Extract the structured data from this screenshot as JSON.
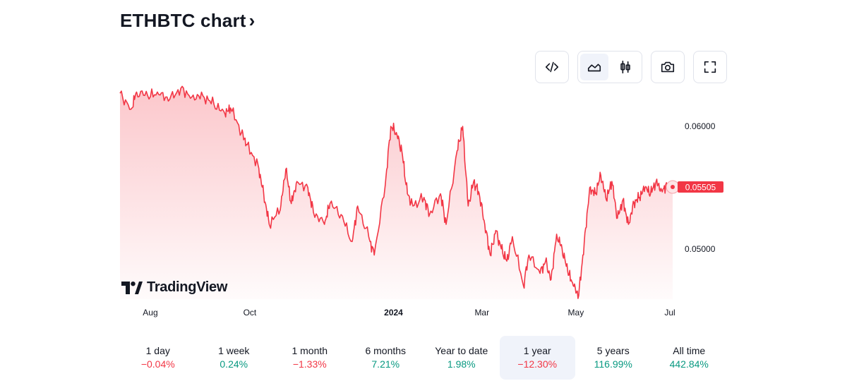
{
  "header": {
    "title": "ETHBTC chart",
    "chevron": "›"
  },
  "toolbar": {
    "embed_icon": "code-icon",
    "area_icon": "area-chart-icon",
    "candles_icon": "candlestick-icon",
    "snapshot_icon": "camera-icon",
    "fullscreen_icon": "fullscreen-icon"
  },
  "branding": {
    "logo_text": "TradingView"
  },
  "colors": {
    "line": "#f23645",
    "positive": "#089981",
    "negative": "#f23645",
    "active_bg": "#f0f3fa"
  },
  "chart_data": {
    "type": "area",
    "title": "ETHBTC",
    "x_ticks": [
      {
        "label": "Aug",
        "t": 0.06
      },
      {
        "label": "Oct",
        "t": 0.24
      },
      {
        "label": "2024",
        "t": 0.5,
        "bold": true
      },
      {
        "label": "Mar",
        "t": 0.66
      },
      {
        "label": "May",
        "t": 0.83
      },
      {
        "label": "Jul",
        "t": 1.0
      }
    ],
    "y_ticks": [
      {
        "label": "0.06000",
        "value": 0.06
      },
      {
        "label": "0.05000",
        "value": 0.05
      }
    ],
    "ylim": [
      0.0459,
      0.0634
    ],
    "last_price": {
      "label": "0.05505",
      "value": 0.05505
    },
    "x": [
      0,
      0.02,
      0.03,
      0.05,
      0.07,
      0.09,
      0.11,
      0.13,
      0.15,
      0.17,
      0.19,
      0.2,
      0.22,
      0.23,
      0.25,
      0.26,
      0.27,
      0.29,
      0.3,
      0.31,
      0.32,
      0.34,
      0.35,
      0.37,
      0.38,
      0.4,
      0.42,
      0.43,
      0.45,
      0.46,
      0.48,
      0.49,
      0.5,
      0.51,
      0.52,
      0.53,
      0.55,
      0.56,
      0.58,
      0.59,
      0.61,
      0.62,
      0.63,
      0.64,
      0.65,
      0.66,
      0.67,
      0.68,
      0.69,
      0.7,
      0.71,
      0.73,
      0.74,
      0.76,
      0.77,
      0.78,
      0.79,
      0.8,
      0.81,
      0.82,
      0.83,
      0.84,
      0.85,
      0.86,
      0.87,
      0.88,
      0.89,
      0.9,
      0.91,
      0.92,
      0.93,
      0.94,
      0.95,
      0.96,
      0.97,
      0.98,
      0.99,
      1.0
    ],
    "values": [
      0.0627,
      0.0614,
      0.0628,
      0.0625,
      0.0626,
      0.0622,
      0.0631,
      0.0624,
      0.0625,
      0.0618,
      0.061,
      0.0615,
      0.0595,
      0.0585,
      0.0568,
      0.0545,
      0.052,
      0.0532,
      0.0565,
      0.0537,
      0.0555,
      0.055,
      0.053,
      0.052,
      0.0537,
      0.0528,
      0.0506,
      0.0535,
      0.051,
      0.0495,
      0.0552,
      0.06,
      0.0595,
      0.058,
      0.0545,
      0.0535,
      0.0542,
      0.0528,
      0.0545,
      0.052,
      0.058,
      0.06,
      0.0535,
      0.0555,
      0.0545,
      0.052,
      0.0495,
      0.0515,
      0.05,
      0.049,
      0.051,
      0.047,
      0.0495,
      0.048,
      0.049,
      0.0475,
      0.0512,
      0.05,
      0.0482,
      0.047,
      0.0462,
      0.0505,
      0.055,
      0.0545,
      0.056,
      0.054,
      0.0555,
      0.0525,
      0.054,
      0.052,
      0.0538,
      0.0542,
      0.055,
      0.0545,
      0.0555,
      0.0548,
      0.0552,
      0.05505
    ]
  },
  "ranges": [
    {
      "label": "1 day",
      "change": "−0.04%",
      "sign": "neg",
      "active": false
    },
    {
      "label": "1 week",
      "change": "0.24%",
      "sign": "pos",
      "active": false
    },
    {
      "label": "1 month",
      "change": "−1.33%",
      "sign": "neg",
      "active": false
    },
    {
      "label": "6 months",
      "change": "7.21%",
      "sign": "pos",
      "active": false
    },
    {
      "label": "Year to date",
      "change": "1.98%",
      "sign": "pos",
      "active": false
    },
    {
      "label": "1 year",
      "change": "−12.30%",
      "sign": "neg",
      "active": true
    },
    {
      "label": "5 years",
      "change": "116.99%",
      "sign": "pos",
      "active": false
    },
    {
      "label": "All time",
      "change": "442.84%",
      "sign": "pos",
      "active": false
    }
  ]
}
